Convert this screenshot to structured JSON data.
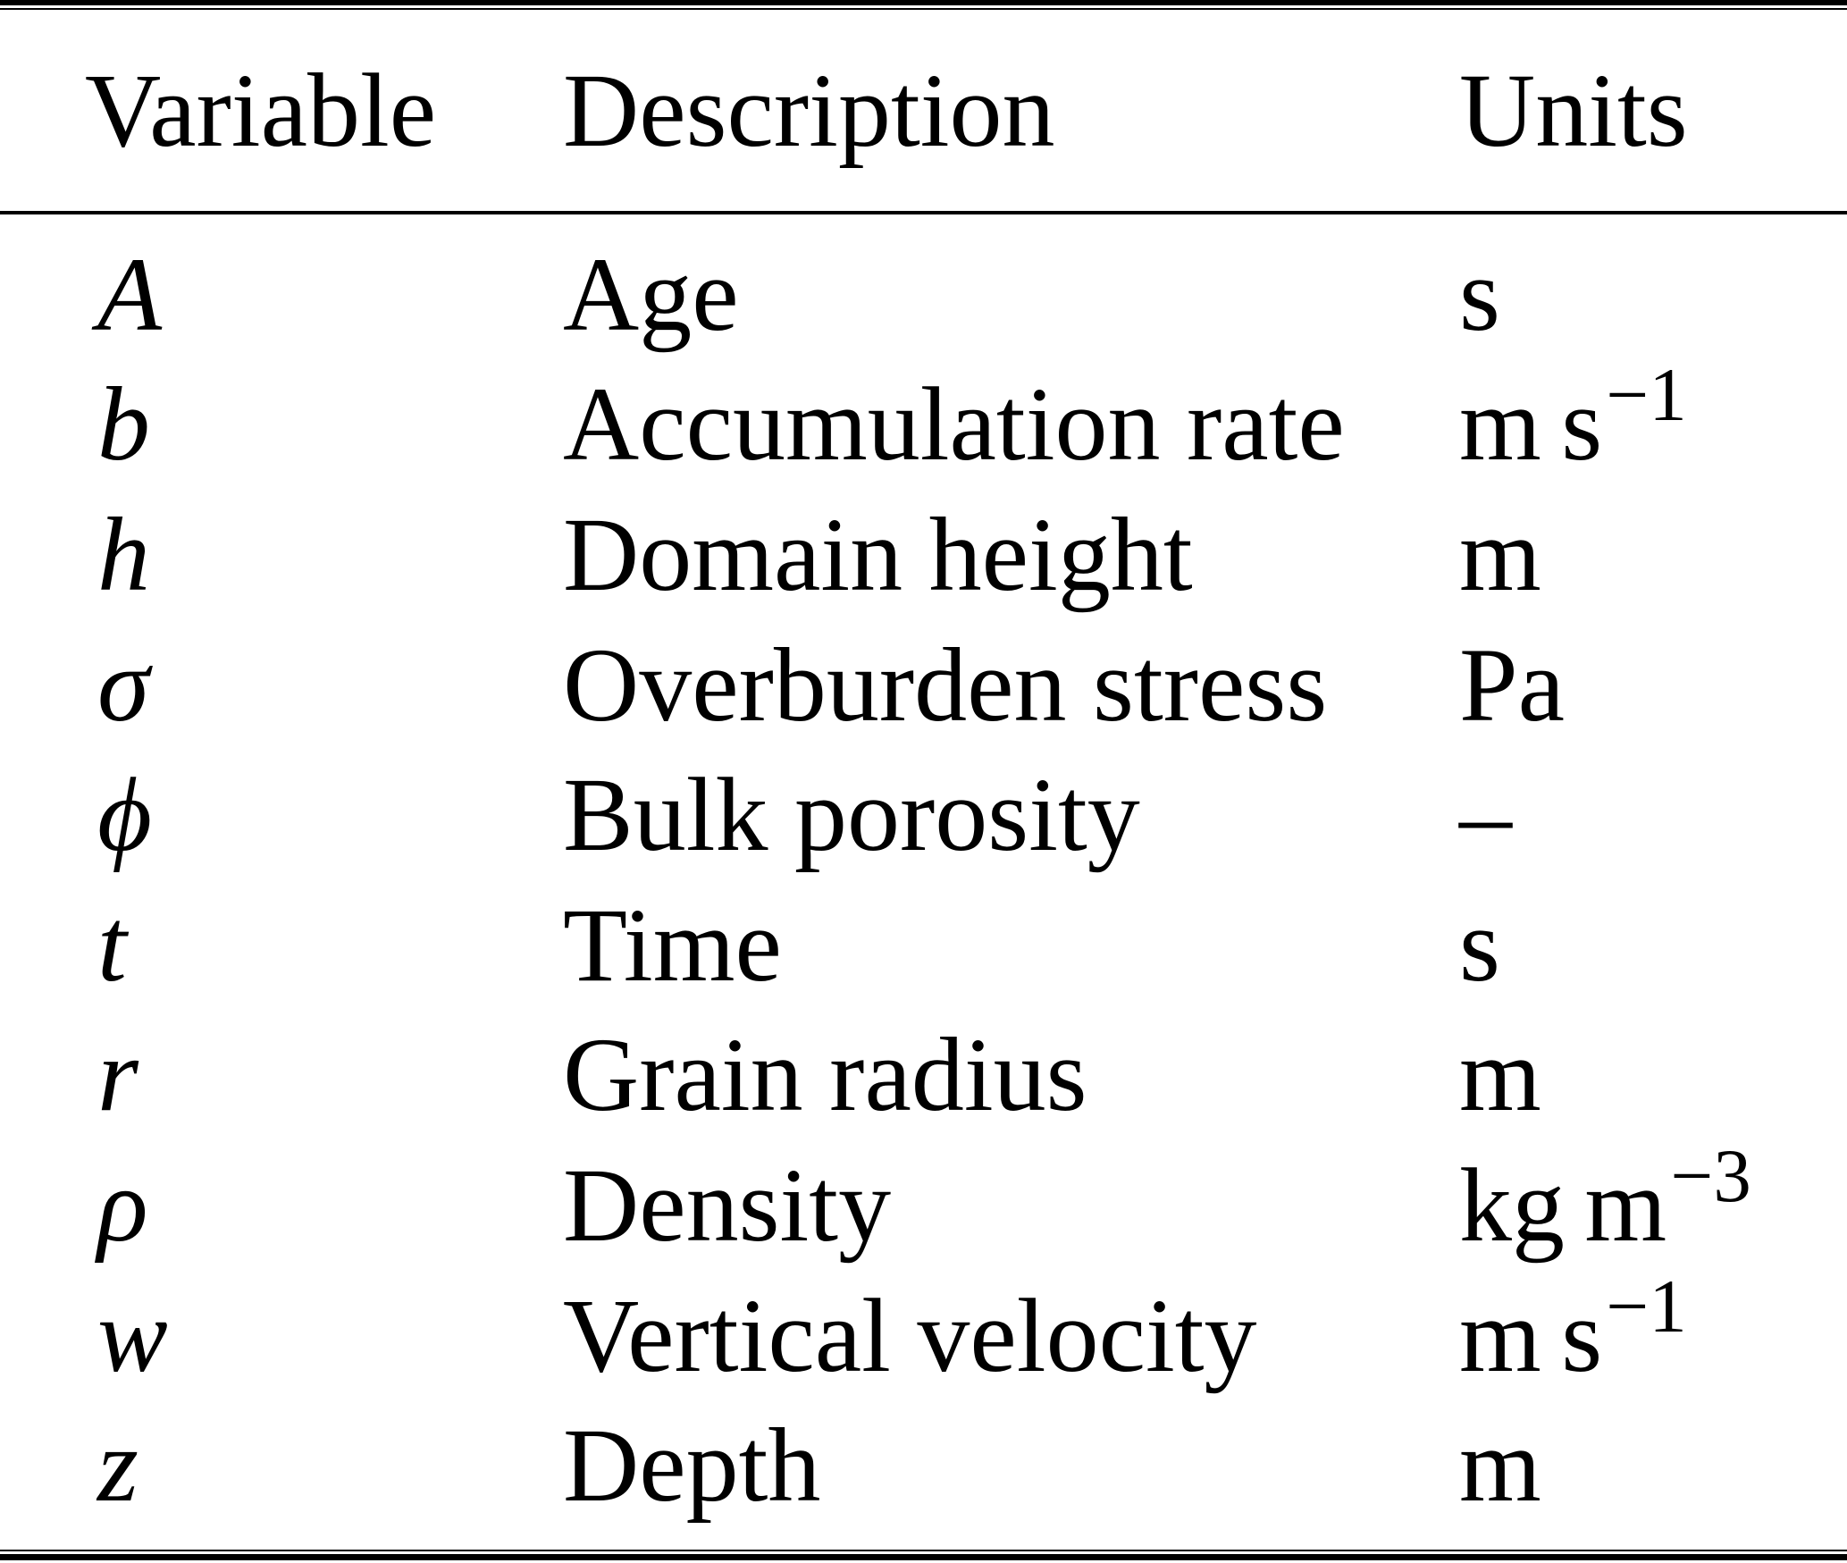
{
  "colors": {
    "text": "#000000",
    "background": "#ffffff"
  },
  "table": {
    "columns": [
      "Variable",
      "Description",
      "Units"
    ],
    "rows": [
      {
        "variable": "A",
        "description": "Age",
        "unit": "s",
        "unit_sup": ""
      },
      {
        "variable": "b",
        "description": "Accumulation rate",
        "unit": "m s",
        "unit_sup": "−1"
      },
      {
        "variable": "h",
        "description": "Domain height",
        "unit": "m",
        "unit_sup": ""
      },
      {
        "variable": "σ",
        "description": "Overburden stress",
        "unit": "Pa",
        "unit_sup": ""
      },
      {
        "variable": "ϕ",
        "description": "Bulk porosity",
        "unit": "–",
        "unit_sup": ""
      },
      {
        "variable": "t",
        "description": "Time",
        "unit": "s",
        "unit_sup": ""
      },
      {
        "variable": "r",
        "description": "Grain radius",
        "unit": "m",
        "unit_sup": ""
      },
      {
        "variable": "ρ",
        "description": "Density",
        "unit": "kg m",
        "unit_sup": "−3"
      },
      {
        "variable": "w",
        "description": "Vertical velocity",
        "unit": "m s",
        "unit_sup": "−1"
      },
      {
        "variable": "z",
        "description": "Depth",
        "unit": "m",
        "unit_sup": ""
      }
    ]
  }
}
